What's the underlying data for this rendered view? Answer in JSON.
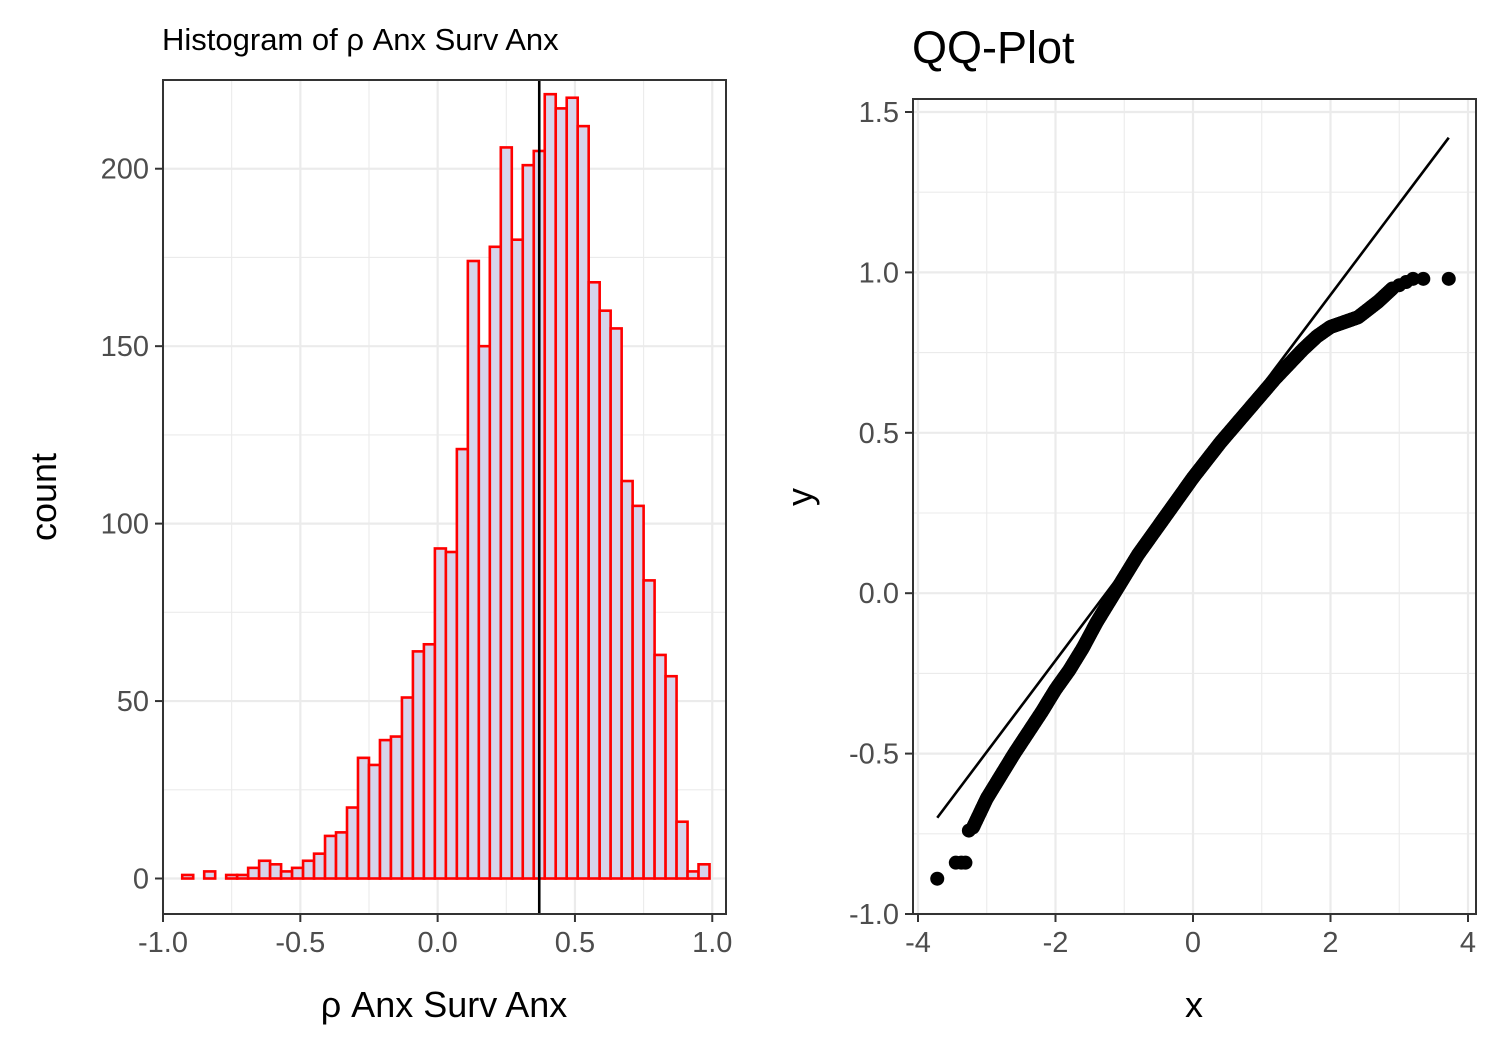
{
  "chart_data": [
    {
      "type": "bar",
      "title": "Histogram of ρ Anx Surv Anx",
      "xlabel": "ρ Anx Surv Anx",
      "ylabel": "count",
      "xlim": [
        -1.0,
        1.05
      ],
      "ylim": [
        -10,
        225
      ],
      "x_ticks": [
        -1.0,
        -0.5,
        0.0,
        0.5,
        1.0
      ],
      "x_tick_labels": [
        "-1.0",
        "-0.5",
        "0.0",
        "0.5",
        "1.0"
      ],
      "y_ticks": [
        0,
        50,
        100,
        150,
        200
      ],
      "y_tick_labels": [
        "0",
        "50",
        "100",
        "150",
        "200"
      ],
      "grid": true,
      "bin_width": 0.04,
      "bin_starts": [
        -0.93,
        -0.89,
        -0.85,
        -0.81,
        -0.77,
        -0.73,
        -0.69,
        -0.65,
        -0.61,
        -0.57,
        -0.53,
        -0.49,
        -0.45,
        -0.41,
        -0.37,
        -0.33,
        -0.29,
        -0.25,
        -0.21,
        -0.17,
        -0.13,
        -0.09,
        -0.05,
        -0.01,
        0.03,
        0.07,
        0.11,
        0.15,
        0.19,
        0.23,
        0.27,
        0.31,
        0.35,
        0.39,
        0.43,
        0.47,
        0.51,
        0.55,
        0.59,
        0.63,
        0.67,
        0.71,
        0.75,
        0.79,
        0.83,
        0.87,
        0.91,
        0.95,
        0.99
      ],
      "counts": [
        1,
        0,
        2,
        0,
        1,
        1,
        3,
        5,
        4,
        2,
        3,
        5,
        7,
        12,
        13,
        20,
        34,
        32,
        39,
        40,
        51,
        64,
        66,
        93,
        92,
        121,
        174,
        150,
        178,
        206,
        180,
        201,
        205,
        221,
        217,
        220,
        212,
        168,
        160,
        155,
        112,
        105,
        84,
        63,
        57,
        16,
        2,
        4,
        0
      ],
      "fill_color": "#d6d4eb",
      "edge_color": "#ff0000",
      "reference_line": {
        "x": 0.37,
        "color": "#000000"
      }
    },
    {
      "type": "scatter",
      "title": "QQ-Plot",
      "xlabel": "x",
      "ylabel": "y",
      "xlim": [
        -4,
        4
      ],
      "ylim": [
        -1.0,
        1.5
      ],
      "x_ticks": [
        -4,
        -2,
        0,
        2,
        4
      ],
      "x_tick_labels": [
        "-4",
        "-2",
        "0",
        "2",
        "4"
      ],
      "y_ticks": [
        -1.0,
        -0.5,
        0.0,
        0.5,
        1.0,
        1.5
      ],
      "y_tick_labels": [
        "-1.0",
        "-0.5",
        "0.0",
        "0.5",
        "1.0",
        "1.5"
      ],
      "grid": true,
      "point_color": "#000000",
      "curve_knots": {
        "x": [
          -3.2,
          -3.0,
          -2.6,
          -2.2,
          -2.0,
          -1.8,
          -1.6,
          -1.4,
          -1.2,
          -1.0,
          -0.8,
          -0.6,
          -0.4,
          -0.2,
          0.0,
          0.4,
          0.8,
          1.2,
          1.6,
          1.8,
          2.0,
          2.4,
          2.7,
          2.9
        ],
        "y": [
          -0.73,
          -0.64,
          -0.5,
          -0.37,
          -0.3,
          -0.24,
          -0.17,
          -0.09,
          -0.02,
          0.05,
          0.12,
          0.18,
          0.24,
          0.3,
          0.36,
          0.47,
          0.57,
          0.67,
          0.76,
          0.8,
          0.83,
          0.86,
          0.91,
          0.95
        ]
      },
      "tail_points": [
        {
          "x": -3.72,
          "y": -0.89
        },
        {
          "x": -3.45,
          "y": -0.84
        },
        {
          "x": -3.37,
          "y": -0.84
        },
        {
          "x": -3.31,
          "y": -0.84
        },
        {
          "x": -3.26,
          "y": -0.74
        },
        {
          "x": 3.0,
          "y": 0.96
        },
        {
          "x": 3.1,
          "y": 0.97
        },
        {
          "x": 3.2,
          "y": 0.98
        },
        {
          "x": 3.35,
          "y": 0.98
        },
        {
          "x": 3.72,
          "y": 0.98
        }
      ],
      "reference_line": {
        "x1": -3.72,
        "y1": -0.7,
        "x2": 3.72,
        "y2": 1.42,
        "color": "#000000"
      }
    }
  ]
}
